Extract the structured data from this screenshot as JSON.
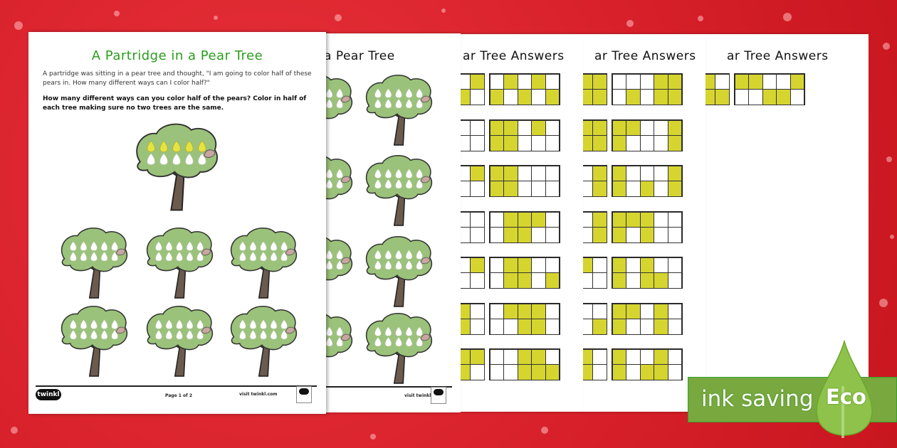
{
  "colors": {
    "background": "#d61f29",
    "fill": "#d6d530",
    "tree": "#9bc27a",
    "title_green": "#2a9d1c",
    "eco_green": "#79a83f",
    "drop_green": "#8fc24a"
  },
  "page1": {
    "title": "A Partridge in a Pear Tree",
    "intro": "A partridge was sitting in a pear tree and thought, \"I am going to color half of these pears in. How many different ways can I color half?\"",
    "question": "How many different ways can you color half of the pears? Color in half of each tree making sure no two trees are the same.",
    "footer": {
      "logo": "twinkl",
      "page": "Page 1 of 2",
      "site": "visit twinkl.com"
    }
  },
  "page2": {
    "title": "a Pear Tree",
    "footer": {
      "site": "visit twinkl.com"
    }
  },
  "answer_pages": [
    {
      "title": "ar Tree Answers",
      "partial": [
        [
          [
            0,
            1
          ],
          [
            1,
            0
          ]
        ],
        [
          [
            0,
            0
          ],
          [
            0,
            0
          ]
        ],
        [
          [
            0,
            1
          ],
          [
            0,
            0
          ]
        ],
        [
          [
            0,
            0
          ],
          [
            0,
            0
          ]
        ],
        [
          [
            0,
            1
          ],
          [
            0,
            0
          ]
        ],
        [
          [
            1,
            0
          ],
          [
            1,
            0
          ]
        ],
        [
          [
            1,
            1
          ],
          [
            1,
            0
          ]
        ]
      ],
      "main": [
        [
          [
            0,
            1,
            0,
            1,
            0
          ],
          [
            1,
            0,
            1,
            0,
            1
          ]
        ],
        [
          [
            1,
            1,
            0,
            1,
            0
          ],
          [
            1,
            1,
            0,
            0,
            0
          ]
        ],
        [
          [
            1,
            1,
            0,
            0,
            0
          ],
          [
            1,
            1,
            0,
            0,
            0
          ]
        ],
        [
          [
            0,
            1,
            1,
            1,
            0
          ],
          [
            0,
            1,
            1,
            0,
            0
          ]
        ],
        [
          [
            0,
            1,
            1,
            0,
            0
          ],
          [
            0,
            1,
            1,
            0,
            1
          ]
        ],
        [
          [
            0,
            1,
            1,
            1,
            0
          ],
          [
            0,
            0,
            1,
            1,
            0
          ]
        ],
        [
          [
            0,
            0,
            1,
            1,
            0
          ],
          [
            0,
            0,
            1,
            1,
            1
          ]
        ]
      ]
    },
    {
      "title": "ar Tree Answers",
      "partial": [
        [
          [
            1,
            1
          ],
          [
            1,
            1
          ]
        ],
        [
          [
            1,
            1
          ],
          [
            1,
            1
          ]
        ],
        [
          [
            0,
            1
          ],
          [
            0,
            1
          ]
        ],
        [
          [
            0,
            1
          ],
          [
            0,
            1
          ]
        ],
        [
          [
            1,
            0
          ],
          [
            0,
            0
          ]
        ],
        [
          [
            0,
            0
          ],
          [
            0,
            1
          ]
        ],
        [
          [
            1,
            0
          ],
          [
            1,
            0
          ]
        ]
      ],
      "main": [
        [
          [
            0,
            0,
            0,
            1,
            1
          ],
          [
            0,
            1,
            0,
            1,
            1
          ]
        ],
        [
          [
            1,
            1,
            0,
            0,
            1
          ],
          [
            1,
            0,
            0,
            0,
            1
          ]
        ],
        [
          [
            1,
            0,
            0,
            0,
            1
          ],
          [
            1,
            0,
            1,
            0,
            1
          ]
        ],
        [
          [
            1,
            1,
            1,
            0,
            0
          ],
          [
            1,
            0,
            1,
            0,
            0
          ]
        ],
        [
          [
            1,
            0,
            1,
            0,
            0
          ],
          [
            1,
            0,
            1,
            1,
            0
          ]
        ],
        [
          [
            1,
            1,
            0,
            1,
            0
          ],
          [
            1,
            0,
            0,
            1,
            0
          ]
        ],
        [
          [
            1,
            0,
            0,
            1,
            0
          ],
          [
            1,
            0,
            1,
            1,
            0
          ]
        ]
      ]
    },
    {
      "title": "ar Tree Answers",
      "partial": [
        [
          [
            1,
            0
          ],
          [
            1,
            1
          ]
        ]
      ],
      "main": [
        [
          [
            1,
            1,
            0,
            0,
            1
          ],
          [
            0,
            0,
            1,
            1,
            0
          ]
        ]
      ]
    }
  ],
  "eco_banner": {
    "label": "ink saving",
    "badge": "Eco"
  }
}
